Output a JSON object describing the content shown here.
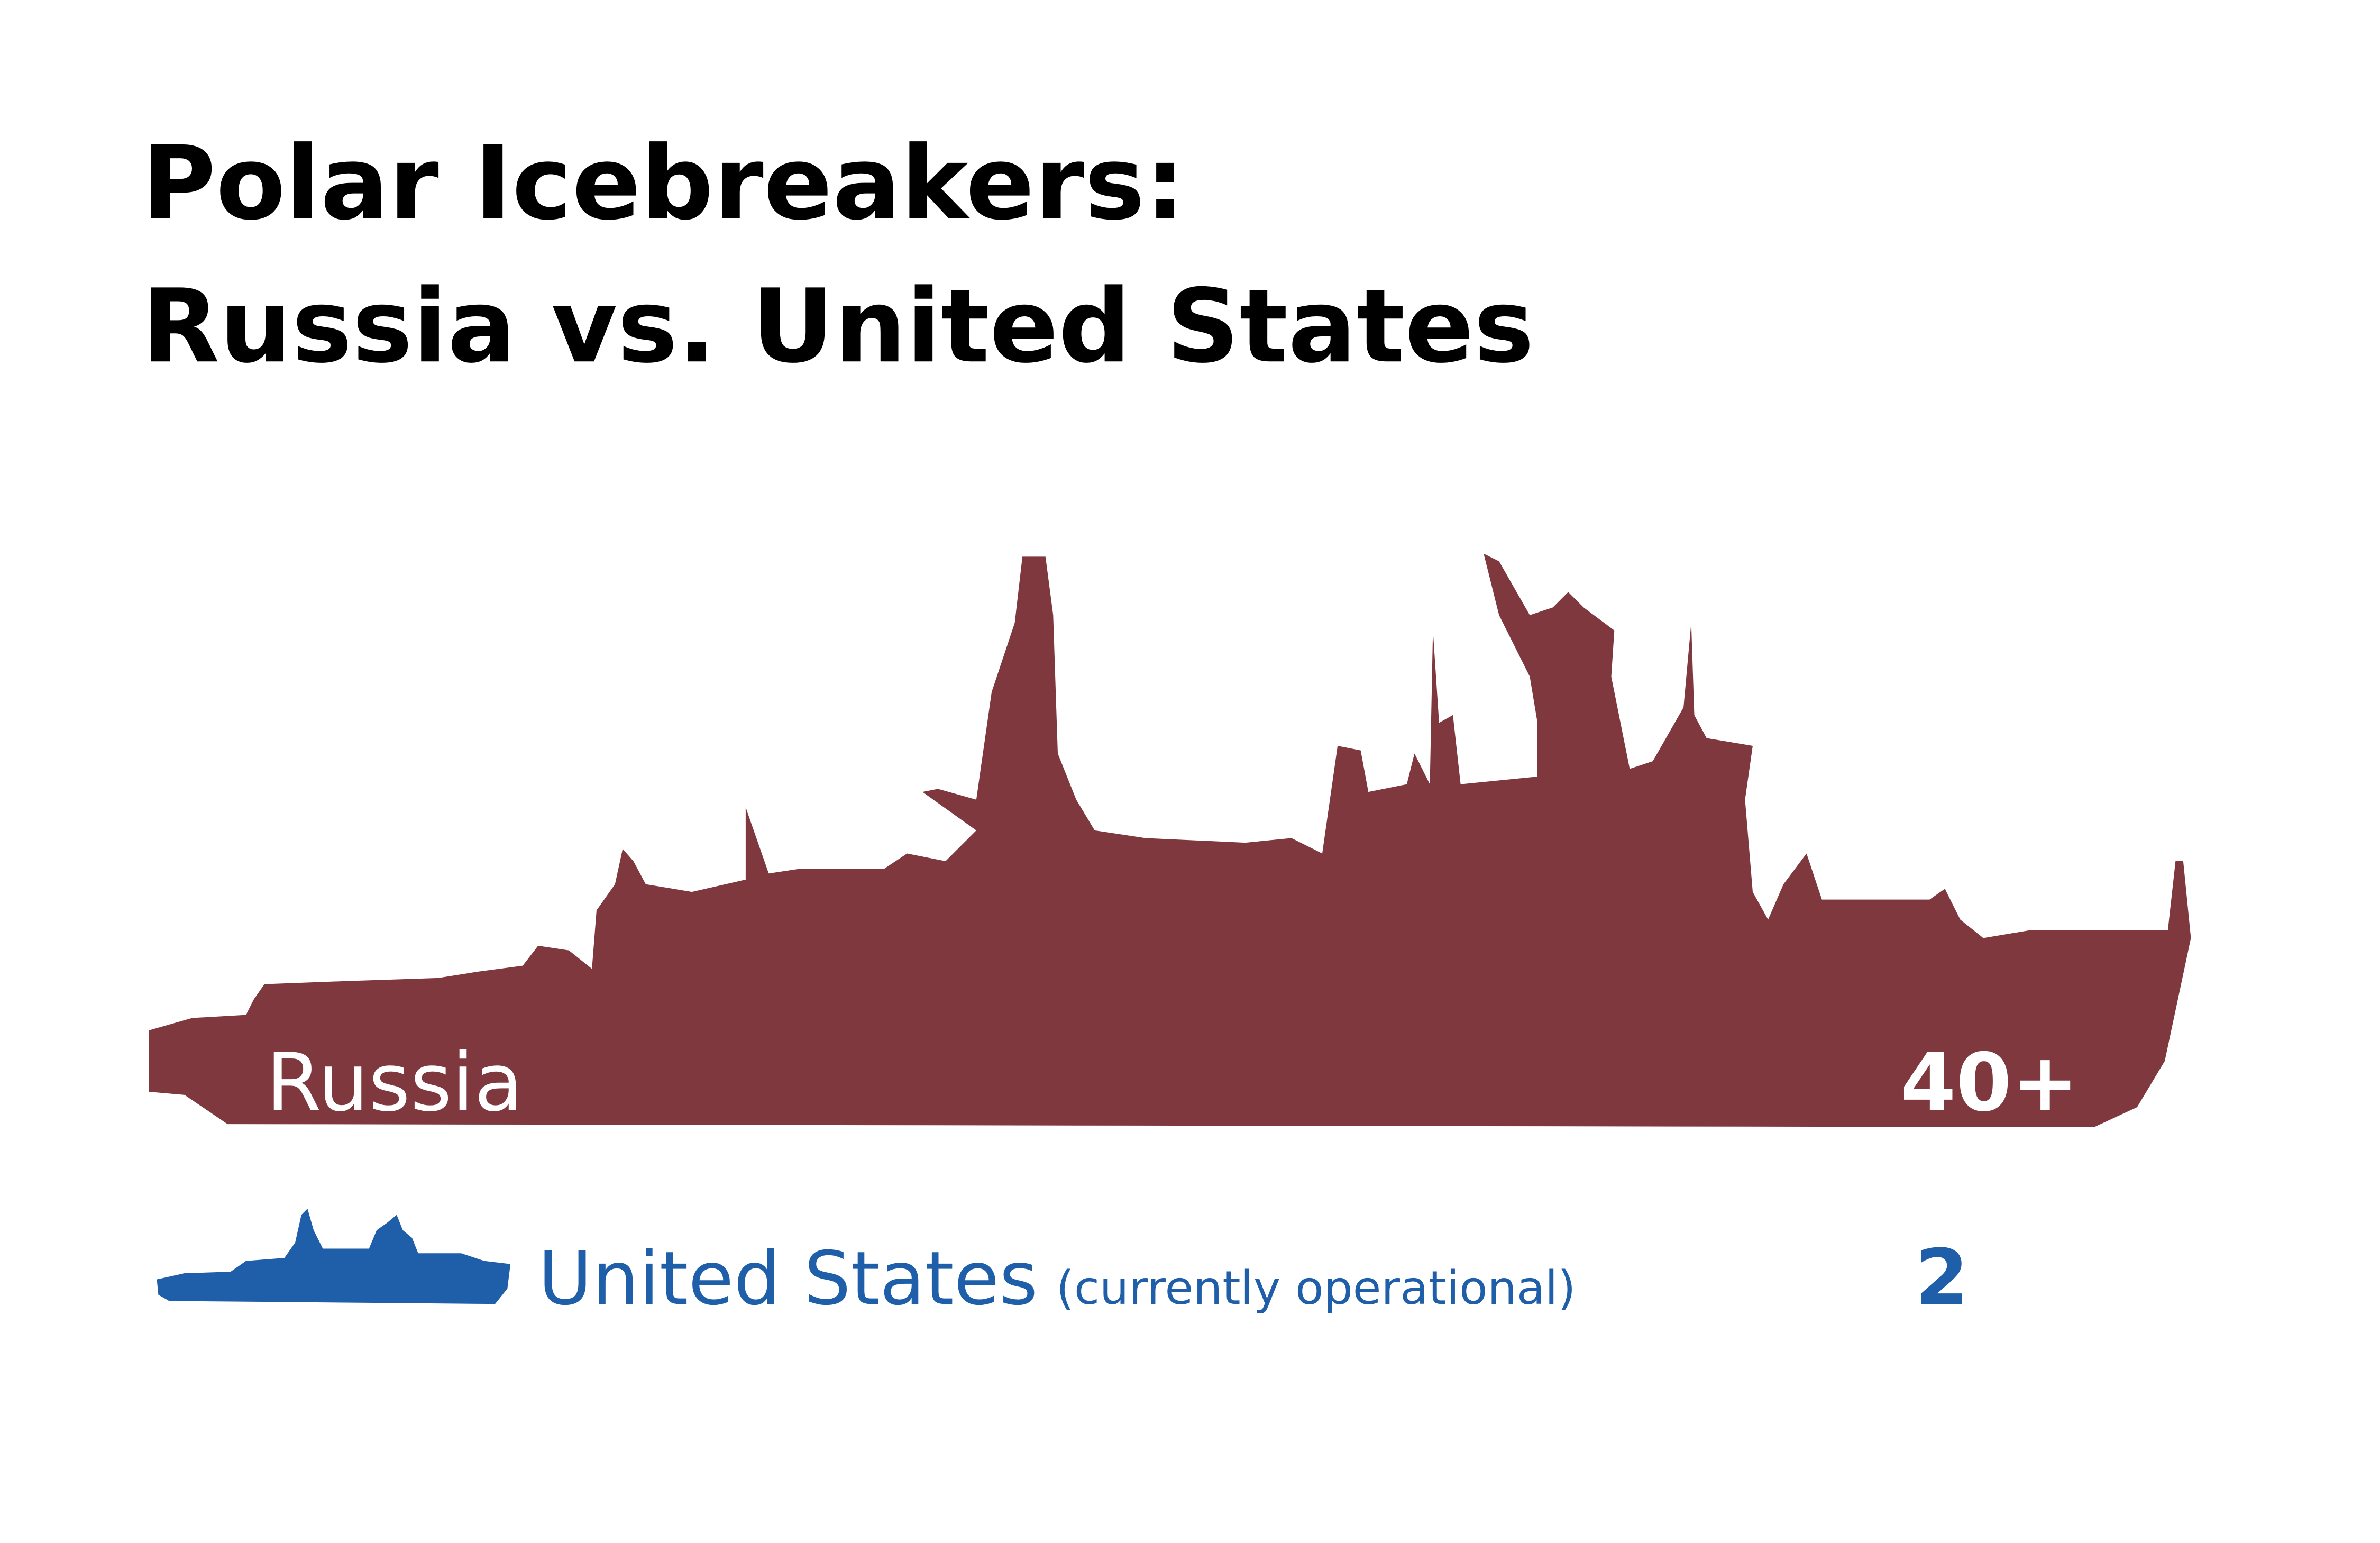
{
  "title": {
    "line1": "Polar Icebreakers:",
    "line2": "Russia vs. United States"
  },
  "rows": [
    {
      "label": "Russia",
      "count": "40+"
    },
    {
      "label": "United States",
      "note": "(currently operational)",
      "count": "2"
    }
  ]
}
